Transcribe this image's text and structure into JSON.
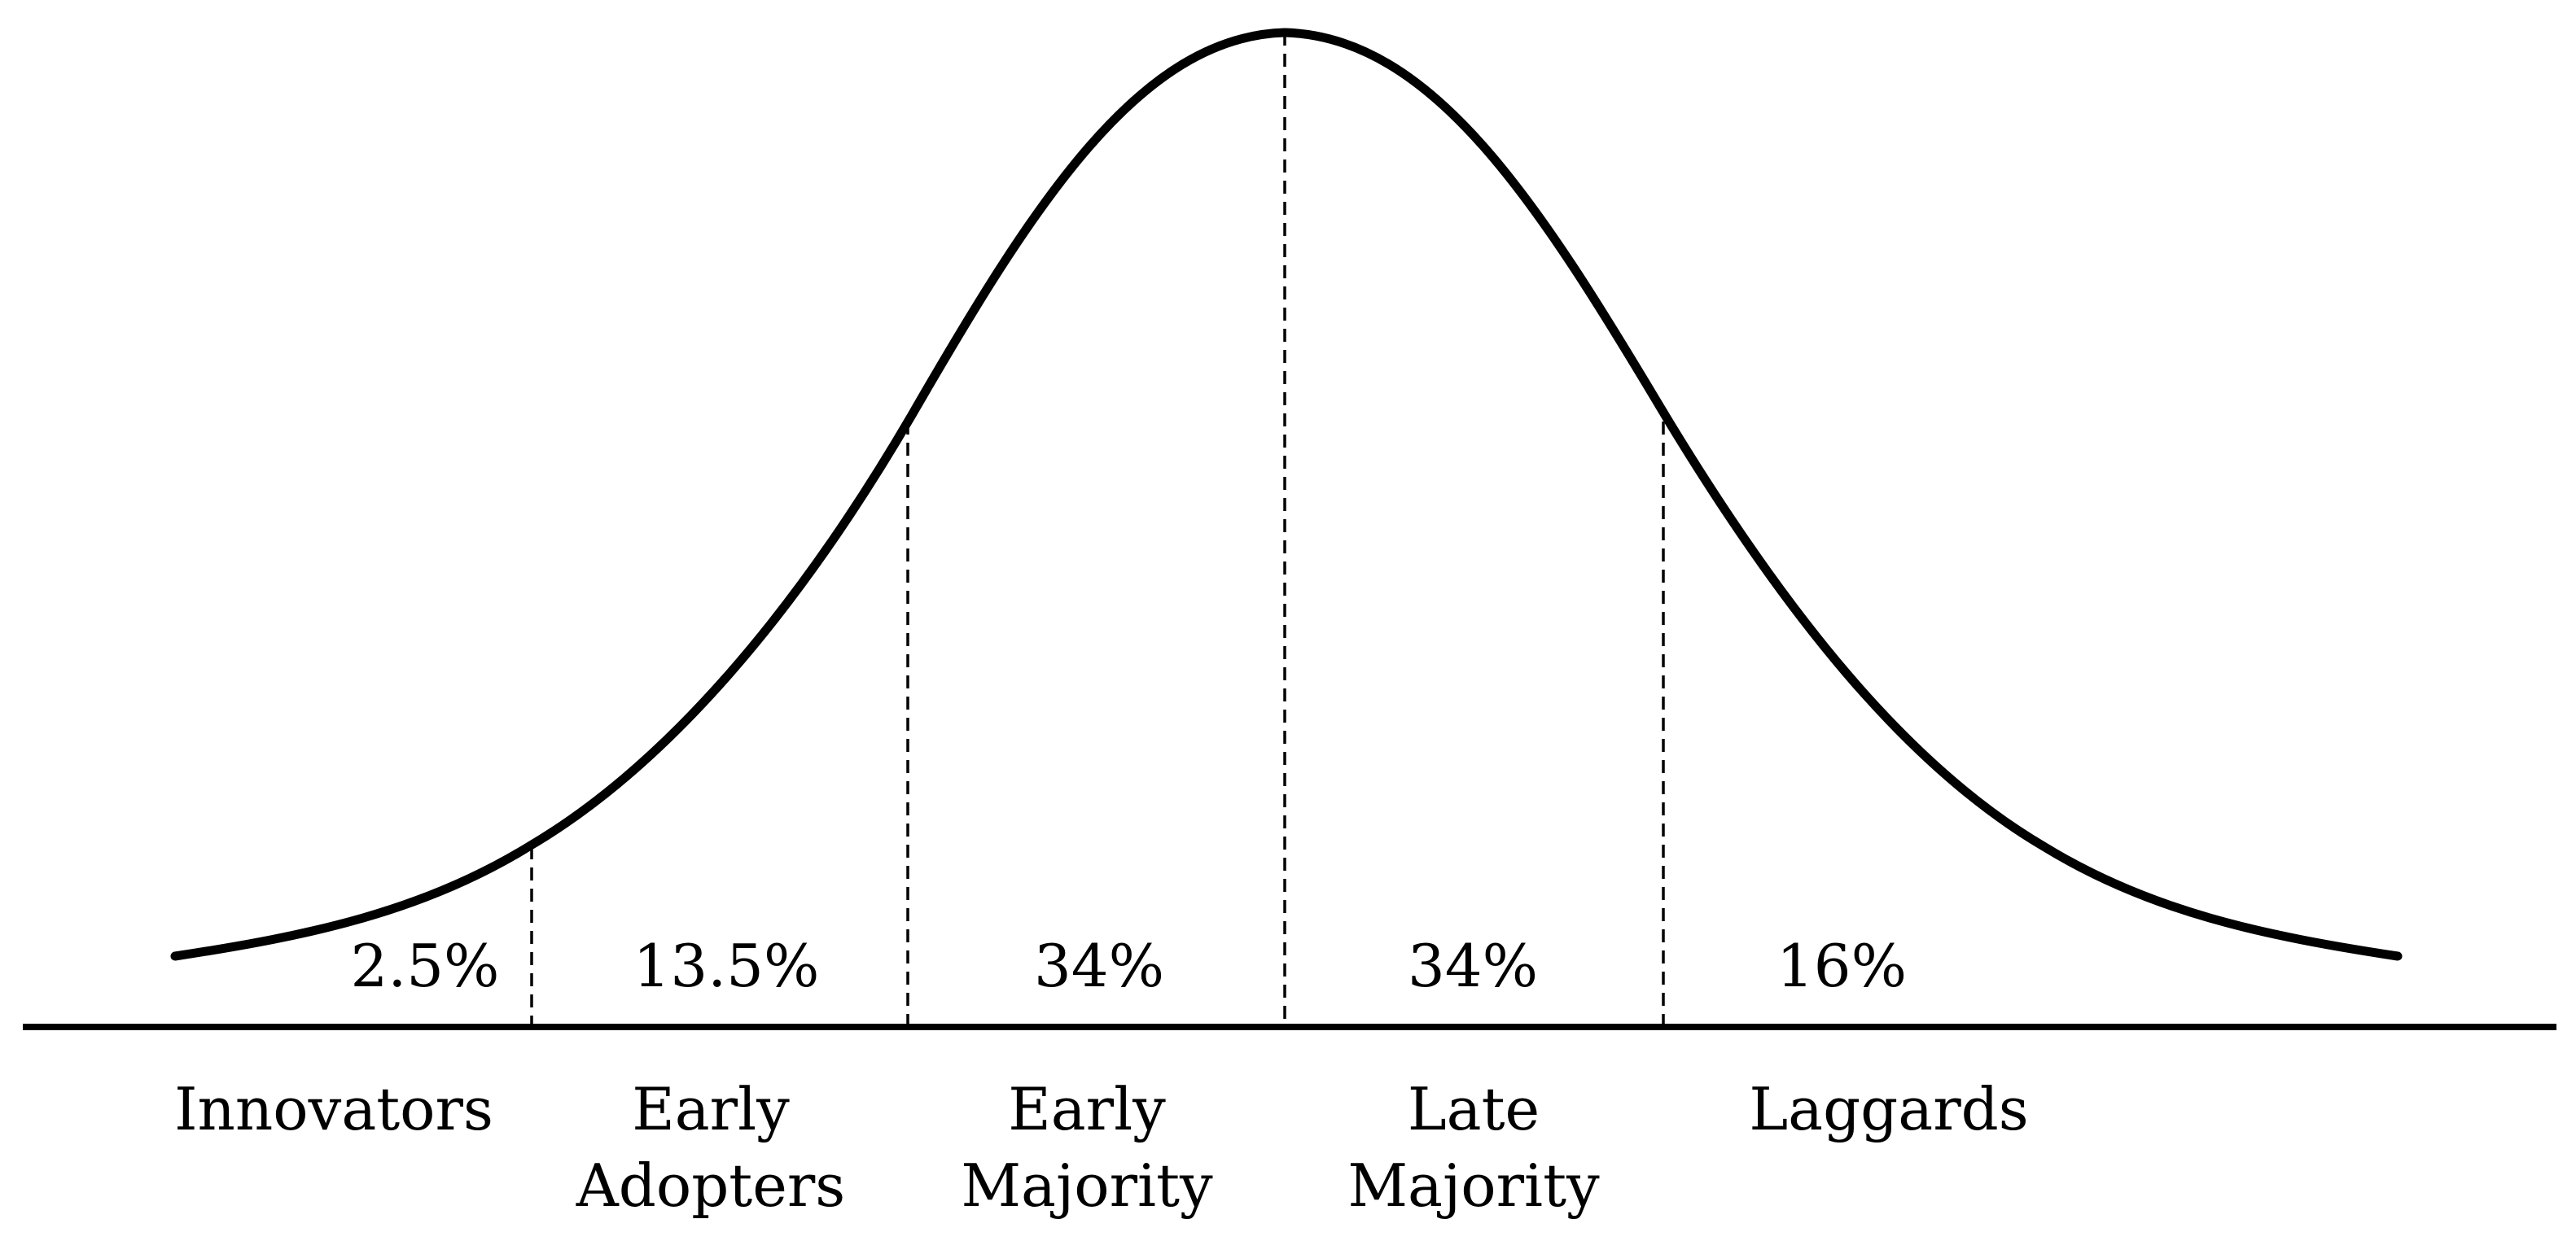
{
  "diagram": {
    "segments": [
      {
        "key": "innovators",
        "percent_label": "2.5%",
        "category_lines": [
          "Innovators"
        ]
      },
      {
        "key": "early_adopters",
        "percent_label": "13.5%",
        "category_lines": [
          "Early",
          "Adopters"
        ]
      },
      {
        "key": "early_majority",
        "percent_label": "34%",
        "category_lines": [
          "Early",
          "Majority"
        ]
      },
      {
        "key": "late_majority",
        "percent_label": "34%",
        "category_lines": [
          "Late",
          "Majority"
        ]
      },
      {
        "key": "laggards",
        "percent_label": "16%",
        "category_lines": [
          "Laggards"
        ]
      }
    ]
  }
}
